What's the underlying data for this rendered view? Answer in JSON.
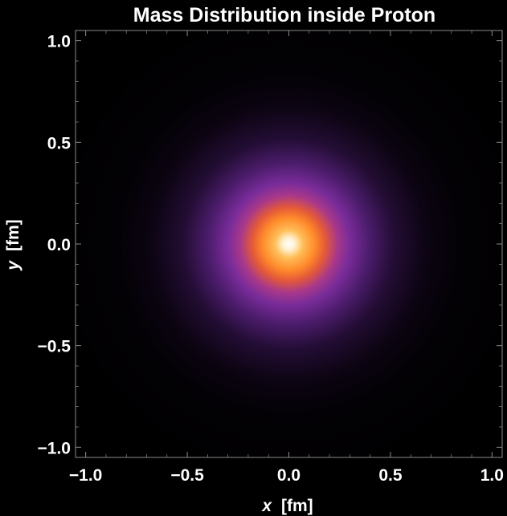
{
  "chart_data": {
    "type": "heatmap",
    "title": "Mass Distribution inside Proton",
    "xlabel": {
      "var": "x",
      "unit": "[fm]"
    },
    "ylabel": {
      "var": "y",
      "unit": "[fm]"
    },
    "xlim": [
      -1.05,
      1.05
    ],
    "ylim": [
      -1.05,
      1.05
    ],
    "x_ticks": [
      {
        "value": -1.0,
        "label": "−1.0"
      },
      {
        "value": -0.5,
        "label": "−0.5"
      },
      {
        "value": 0.0,
        "label": "0.0"
      },
      {
        "value": 0.5,
        "label": "0.5"
      },
      {
        "value": 1.0,
        "label": "1.0"
      }
    ],
    "y_ticks": [
      {
        "value": 1.0,
        "label": "1.0"
      },
      {
        "value": 0.5,
        "label": "0.5"
      },
      {
        "value": 0.0,
        "label": "0.0"
      },
      {
        "value": -0.5,
        "label": "−0.5"
      },
      {
        "value": -1.0,
        "label": "−1.0"
      }
    ],
    "distribution": {
      "shape": "radial-gaussian",
      "center": [
        0.0,
        0.0
      ],
      "gradient_stops": [
        {
          "r": 0.0,
          "color": "#ffffff"
        },
        {
          "r": 0.03,
          "color": "#fff1cf"
        },
        {
          "r": 0.07,
          "color": "#ffbd57"
        },
        {
          "r": 0.13,
          "color": "#ff8a2a"
        },
        {
          "r": 0.18,
          "color": "#e45a38"
        },
        {
          "r": 0.24,
          "color": "#a8388a"
        },
        {
          "r": 0.3,
          "color": "#7a2c9a"
        },
        {
          "r": 0.4,
          "color": "#4a1c6a"
        },
        {
          "r": 0.52,
          "color": "#230d34"
        },
        {
          "r": 0.68,
          "color": "#0c0412"
        },
        {
          "r": 0.85,
          "color": "#030105"
        },
        {
          "r": 1.2,
          "color": "#000000"
        }
      ]
    },
    "colors": {
      "background": "#000000",
      "frame": "#8a8a8a",
      "text": "#ffffff"
    }
  }
}
